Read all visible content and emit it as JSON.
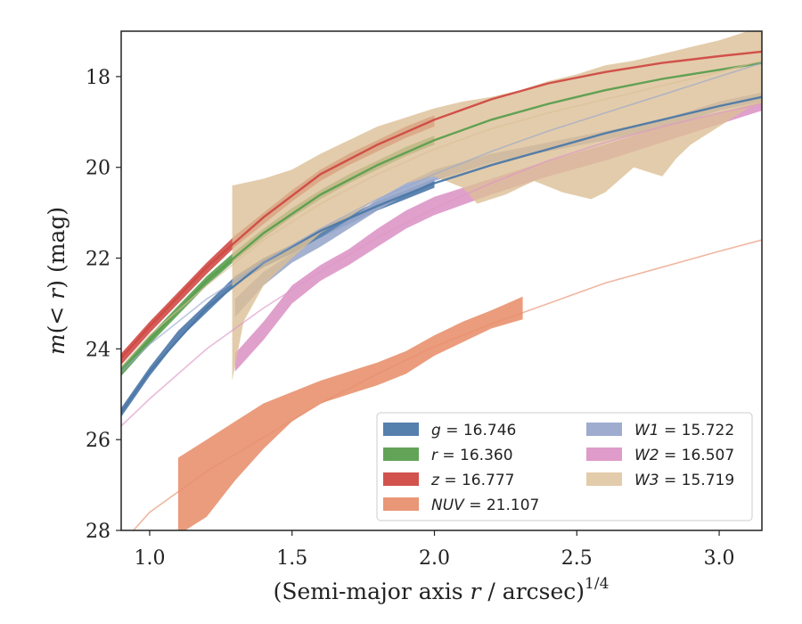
{
  "chart_data": {
    "type": "area",
    "xlabel": "(Semi-major axis r / arcsec)^1/4",
    "xlabel_parts": {
      "prefix": "(Semi-major axis ",
      "var": "r",
      "mid": " / arcsec)",
      "sup": "1/4"
    },
    "ylabel": "m(< r) (mag)",
    "ylabel_parts": {
      "var": "m",
      "open": "(",
      "lt": "< ",
      "r": "r",
      "close": ") (mag)"
    },
    "xlim": [
      0.9,
      3.15
    ],
    "ylim": [
      28,
      17
    ],
    "y_inverted": true,
    "grid": false,
    "legend_position": "lower-right",
    "xticks": [
      1.0,
      1.5,
      2.0,
      2.5,
      3.0
    ],
    "xtick_labels": [
      "1.0",
      "1.5",
      "2.0",
      "2.5",
      "3.0"
    ],
    "yticks": [
      18,
      20,
      22,
      24,
      26,
      28
    ],
    "ytick_labels": [
      "18",
      "20",
      "22",
      "24",
      "26",
      "28"
    ],
    "series": [
      {
        "name": "g = 16.746",
        "label_var": "g",
        "label_val": "= 16.746",
        "color": "#4c78a8",
        "band_upper": [
          [
            0.9,
            25.3
          ],
          [
            1.0,
            24.4
          ],
          [
            1.1,
            23.6
          ],
          [
            1.2,
            23.0
          ],
          [
            1.3,
            22.4
          ],
          [
            1.4,
            22.0
          ],
          [
            1.5,
            21.7
          ],
          [
            1.6,
            21.35
          ],
          [
            1.7,
            21.05
          ],
          [
            1.8,
            20.75
          ],
          [
            1.9,
            20.5
          ],
          [
            2.0,
            20.25
          ]
        ],
        "band_lower": [
          [
            0.9,
            25.5
          ],
          [
            1.0,
            24.6
          ],
          [
            1.1,
            23.8
          ],
          [
            1.2,
            23.2
          ],
          [
            1.3,
            22.6
          ],
          [
            1.4,
            22.2
          ],
          [
            1.5,
            21.9
          ],
          [
            1.6,
            21.55
          ],
          [
            1.7,
            21.25
          ],
          [
            1.8,
            20.95
          ],
          [
            1.9,
            20.7
          ],
          [
            2.0,
            20.45
          ]
        ],
        "model": [
          [
            0.9,
            25.4
          ],
          [
            1.0,
            24.5
          ],
          [
            1.2,
            23.1
          ],
          [
            1.4,
            22.1
          ],
          [
            1.6,
            21.4
          ],
          [
            1.8,
            20.85
          ],
          [
            2.0,
            20.35
          ],
          [
            2.2,
            19.95
          ],
          [
            2.4,
            19.6
          ],
          [
            2.6,
            19.25
          ],
          [
            2.8,
            18.95
          ],
          [
            3.0,
            18.65
          ],
          [
            3.15,
            18.45
          ]
        ]
      },
      {
        "name": "r = 16.360",
        "label_var": "r",
        "label_val": "= 16.360",
        "color": "#5a9e4f",
        "band_upper": [
          [
            0.9,
            24.4
          ],
          [
            1.0,
            23.7
          ],
          [
            1.1,
            23.05
          ],
          [
            1.2,
            22.4
          ],
          [
            1.3,
            21.85
          ],
          [
            1.4,
            21.35
          ],
          [
            1.5,
            20.9
          ],
          [
            1.6,
            20.5
          ],
          [
            1.7,
            20.15
          ],
          [
            1.8,
            19.85
          ],
          [
            1.9,
            19.55
          ],
          [
            2.0,
            19.3
          ]
        ],
        "band_lower": [
          [
            0.9,
            24.6
          ],
          [
            1.0,
            23.9
          ],
          [
            1.1,
            23.25
          ],
          [
            1.2,
            22.6
          ],
          [
            1.3,
            22.05
          ],
          [
            1.4,
            21.55
          ],
          [
            1.5,
            21.1
          ],
          [
            1.6,
            20.7
          ],
          [
            1.7,
            20.35
          ],
          [
            1.8,
            20.05
          ],
          [
            1.9,
            19.75
          ],
          [
            2.0,
            19.5
          ]
        ],
        "model": [
          [
            0.9,
            24.5
          ],
          [
            1.0,
            23.8
          ],
          [
            1.2,
            22.5
          ],
          [
            1.4,
            21.45
          ],
          [
            1.6,
            20.6
          ],
          [
            1.8,
            19.95
          ],
          [
            2.0,
            19.4
          ],
          [
            2.2,
            18.95
          ],
          [
            2.4,
            18.6
          ],
          [
            2.6,
            18.3
          ],
          [
            2.8,
            18.05
          ],
          [
            3.0,
            17.85
          ],
          [
            3.15,
            17.7
          ]
        ]
      },
      {
        "name": "z = 16.777",
        "label_var": "z",
        "label_val": "= 16.777",
        "color": "#d04a45",
        "band_upper": [
          [
            0.9,
            24.1
          ],
          [
            1.0,
            23.4
          ],
          [
            1.1,
            22.75
          ],
          [
            1.2,
            22.1
          ],
          [
            1.3,
            21.5
          ],
          [
            1.4,
            21.0
          ],
          [
            1.5,
            20.5
          ],
          [
            1.6,
            20.05
          ],
          [
            1.7,
            19.7
          ],
          [
            1.8,
            19.4
          ],
          [
            1.9,
            19.1
          ],
          [
            2.0,
            18.85
          ]
        ],
        "band_lower": [
          [
            0.9,
            24.35
          ],
          [
            1.0,
            23.65
          ],
          [
            1.1,
            23.0
          ],
          [
            1.2,
            22.35
          ],
          [
            1.3,
            21.75
          ],
          [
            1.4,
            21.25
          ],
          [
            1.5,
            20.75
          ],
          [
            1.6,
            20.3
          ],
          [
            1.7,
            19.95
          ],
          [
            1.8,
            19.65
          ],
          [
            1.9,
            19.35
          ],
          [
            2.0,
            19.1
          ]
        ],
        "model": [
          [
            0.9,
            24.2
          ],
          [
            1.0,
            23.5
          ],
          [
            1.2,
            22.2
          ],
          [
            1.4,
            21.1
          ],
          [
            1.6,
            20.15
          ],
          [
            1.8,
            19.5
          ],
          [
            2.0,
            18.95
          ],
          [
            2.2,
            18.5
          ],
          [
            2.4,
            18.15
          ],
          [
            2.6,
            17.9
          ],
          [
            2.8,
            17.7
          ],
          [
            3.0,
            17.55
          ],
          [
            3.15,
            17.45
          ]
        ]
      },
      {
        "name": "NUV = 21.107",
        "label_var": "NUV",
        "label_val": "= 21.107",
        "color": "#e8916f",
        "band_upper": [
          [
            1.1,
            26.4
          ],
          [
            1.2,
            26.0
          ],
          [
            1.3,
            25.6
          ],
          [
            1.4,
            25.2
          ],
          [
            1.5,
            24.95
          ],
          [
            1.6,
            24.7
          ],
          [
            1.7,
            24.5
          ],
          [
            1.8,
            24.3
          ],
          [
            1.9,
            24.05
          ],
          [
            2.0,
            23.7
          ],
          [
            2.1,
            23.4
          ],
          [
            2.2,
            23.15
          ],
          [
            2.31,
            22.85
          ]
        ],
        "band_lower": [
          [
            1.1,
            28.1
          ],
          [
            1.2,
            27.7
          ],
          [
            1.3,
            26.9
          ],
          [
            1.4,
            26.2
          ],
          [
            1.5,
            25.6
          ],
          [
            1.6,
            25.2
          ],
          [
            1.7,
            25.0
          ],
          [
            1.8,
            24.8
          ],
          [
            1.9,
            24.55
          ],
          [
            2.0,
            24.15
          ],
          [
            2.1,
            23.85
          ],
          [
            2.2,
            23.55
          ],
          [
            2.31,
            23.35
          ]
        ],
        "model": [
          [
            0.9,
            28.3
          ],
          [
            1.0,
            27.6
          ],
          [
            1.2,
            26.7
          ],
          [
            1.4,
            25.95
          ],
          [
            1.6,
            25.2
          ],
          [
            1.8,
            24.55
          ],
          [
            2.0,
            23.95
          ],
          [
            2.2,
            23.45
          ],
          [
            2.4,
            23.0
          ],
          [
            2.6,
            22.55
          ],
          [
            2.8,
            22.2
          ],
          [
            3.0,
            21.85
          ],
          [
            3.15,
            21.6
          ]
        ]
      },
      {
        "name": "W1 = 15.722",
        "label_var": "W1",
        "label_val": "= 15.722",
        "color": "#9aa8cc",
        "band_upper": [
          [
            1.3,
            22.9
          ],
          [
            1.4,
            22.3
          ],
          [
            1.5,
            21.9
          ],
          [
            1.6,
            21.55
          ],
          [
            1.7,
            21.15
          ],
          [
            1.8,
            20.7
          ],
          [
            1.9,
            20.35
          ],
          [
            2.0,
            20.05
          ],
          [
            2.2,
            19.7
          ],
          [
            2.4,
            19.45
          ],
          [
            2.6,
            19.2
          ],
          [
            2.8,
            18.95
          ],
          [
            3.0,
            18.55
          ],
          [
            3.15,
            18.35
          ]
        ],
        "band_lower": [
          [
            1.3,
            23.3
          ],
          [
            1.4,
            22.6
          ],
          [
            1.5,
            22.1
          ],
          [
            1.6,
            21.75
          ],
          [
            1.7,
            21.35
          ],
          [
            1.8,
            20.95
          ],
          [
            1.9,
            20.6
          ],
          [
            2.0,
            20.3
          ],
          [
            2.2,
            19.9
          ],
          [
            2.4,
            19.65
          ],
          [
            2.6,
            19.4
          ],
          [
            2.8,
            19.15
          ],
          [
            3.0,
            18.75
          ],
          [
            3.15,
            18.55
          ]
        ],
        "model": [
          [
            0.9,
            24.5
          ],
          [
            1.0,
            23.9
          ],
          [
            1.2,
            22.9
          ],
          [
            1.4,
            22.1
          ],
          [
            1.6,
            21.35
          ],
          [
            1.8,
            20.7
          ],
          [
            2.0,
            20.15
          ],
          [
            2.2,
            19.65
          ],
          [
            2.4,
            19.2
          ],
          [
            2.6,
            18.8
          ],
          [
            2.8,
            18.4
          ],
          [
            3.0,
            18.0
          ],
          [
            3.15,
            17.7
          ]
        ]
      },
      {
        "name": "W2 = 16.507",
        "label_var": "W2",
        "label_val": "= 16.507",
        "color": "#dd96c6",
        "band_upper": [
          [
            1.3,
            24.1
          ],
          [
            1.4,
            23.4
          ],
          [
            1.5,
            22.6
          ],
          [
            1.6,
            22.15
          ],
          [
            1.7,
            21.8
          ],
          [
            1.8,
            21.35
          ],
          [
            1.9,
            20.95
          ],
          [
            2.0,
            20.65
          ],
          [
            2.2,
            20.25
          ],
          [
            2.4,
            19.85
          ],
          [
            2.6,
            19.5
          ],
          [
            2.8,
            19.1
          ],
          [
            3.0,
            18.8
          ],
          [
            3.15,
            18.55
          ]
        ],
        "band_lower": [
          [
            1.3,
            24.5
          ],
          [
            1.4,
            23.8
          ],
          [
            1.5,
            23.0
          ],
          [
            1.6,
            22.5
          ],
          [
            1.7,
            22.15
          ],
          [
            1.8,
            21.75
          ],
          [
            1.9,
            21.35
          ],
          [
            2.0,
            21.05
          ],
          [
            2.2,
            20.6
          ],
          [
            2.4,
            20.2
          ],
          [
            2.6,
            19.85
          ],
          [
            2.8,
            19.45
          ],
          [
            3.0,
            19.05
          ],
          [
            3.15,
            18.75
          ]
        ],
        "model": [
          [
            0.9,
            25.7
          ],
          [
            1.0,
            25.1
          ],
          [
            1.2,
            24.0
          ],
          [
            1.4,
            23.1
          ],
          [
            1.6,
            22.3
          ],
          [
            1.8,
            21.55
          ],
          [
            2.0,
            20.9
          ],
          [
            2.2,
            20.35
          ],
          [
            2.4,
            19.85
          ],
          [
            2.6,
            19.45
          ],
          [
            2.8,
            19.1
          ],
          [
            3.0,
            18.8
          ],
          [
            3.15,
            18.6
          ]
        ]
      },
      {
        "name": "W3 = 15.719",
        "label_var": "W3",
        "label_val": "= 15.719",
        "color": "#dcbf96",
        "band_upper": [
          [
            1.29,
            20.4
          ],
          [
            1.4,
            20.25
          ],
          [
            1.5,
            20.05
          ],
          [
            1.6,
            19.7
          ],
          [
            1.7,
            19.4
          ],
          [
            1.8,
            19.1
          ],
          [
            1.9,
            18.9
          ],
          [
            2.0,
            18.7
          ],
          [
            2.1,
            18.55
          ],
          [
            2.2,
            18.45
          ],
          [
            2.3,
            18.3
          ],
          [
            2.4,
            18.1
          ],
          [
            2.5,
            17.95
          ],
          [
            2.6,
            17.75
          ],
          [
            2.7,
            17.65
          ],
          [
            2.8,
            17.5
          ],
          [
            2.9,
            17.35
          ],
          [
            3.0,
            17.2
          ],
          [
            3.1,
            17.0
          ],
          [
            3.15,
            16.9
          ]
        ],
        "band_lower": [
          [
            1.29,
            24.7
          ],
          [
            1.33,
            23.4
          ],
          [
            1.4,
            22.6
          ],
          [
            1.5,
            22.0
          ],
          [
            1.6,
            21.45
          ],
          [
            1.7,
            21.1
          ],
          [
            1.8,
            20.7
          ],
          [
            1.9,
            20.35
          ],
          [
            2.0,
            20.2
          ],
          [
            2.1,
            20.45
          ],
          [
            2.15,
            20.8
          ],
          [
            2.25,
            20.6
          ],
          [
            2.35,
            20.3
          ],
          [
            2.45,
            20.55
          ],
          [
            2.55,
            20.7
          ],
          [
            2.6,
            20.55
          ],
          [
            2.7,
            20.0
          ],
          [
            2.8,
            20.2
          ],
          [
            2.85,
            19.8
          ],
          [
            2.9,
            19.5
          ],
          [
            3.0,
            19.1
          ],
          [
            3.1,
            18.7
          ],
          [
            3.15,
            18.6
          ]
        ],
        "model": [
          [
            0.9,
            24.4
          ],
          [
            1.0,
            23.7
          ],
          [
            1.2,
            22.6
          ],
          [
            1.4,
            21.6
          ],
          [
            1.6,
            20.8
          ],
          [
            1.8,
            20.15
          ],
          [
            2.0,
            19.6
          ],
          [
            2.2,
            19.15
          ],
          [
            2.4,
            18.8
          ],
          [
            2.6,
            18.5
          ],
          [
            2.8,
            18.2
          ],
          [
            3.0,
            17.9
          ],
          [
            3.15,
            17.65
          ]
        ]
      }
    ],
    "legend_columns": [
      [
        "g = 16.746",
        "r = 16.360",
        "z = 16.777",
        "NUV = 21.107"
      ],
      [
        "W1 = 15.722",
        "W2 = 16.507",
        "W3 = 15.719"
      ]
    ]
  }
}
